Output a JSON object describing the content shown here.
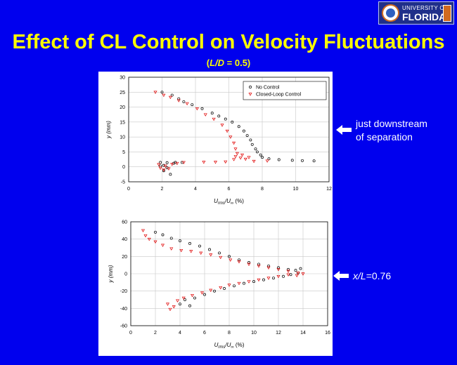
{
  "logo": {
    "line1": "UNIVERSITY OF",
    "line2": "FLORIDA"
  },
  "slide": {
    "title": "Effect of CL Control on Velocity Fluctuations",
    "subtitle_open": "(",
    "subtitle_var": "L/D",
    "subtitle_rest": " = 0.5)"
  },
  "annotations": {
    "top_line1": "just downstream",
    "top_line2": "of separation",
    "bottom_var": "x/L",
    "bottom_rest": "=0.76"
  },
  "colors": {
    "background": "#0000ee",
    "title": "#ffff00",
    "no_control": "#000000",
    "closed_loop": "#e00000"
  },
  "chart_data": [
    {
      "type": "scatter",
      "xlabel_main": "U",
      "xlabel_sub": "rms",
      "xlabel_mid": "/U",
      "xlabel_sub2": "∞",
      "xlabel_unit": " (%)",
      "ylabel": "y (mm)",
      "xlim": [
        0,
        12
      ],
      "ylim": [
        -5,
        30
      ],
      "xticks": [
        0,
        2,
        4,
        6,
        8,
        10,
        12
      ],
      "yticks": [
        -5,
        0,
        5,
        10,
        15,
        20,
        25,
        30
      ],
      "grid": true,
      "legend_position": "top-right",
      "series": [
        {
          "name": "No Control",
          "marker": "circle",
          "points": [
            [
              2.0,
              25
            ],
            [
              2.6,
              24
            ],
            [
              3.0,
              22.8
            ],
            [
              3.3,
              21.8
            ],
            [
              3.8,
              20.8
            ],
            [
              4.4,
              19.5
            ],
            [
              5.0,
              18
            ],
            [
              5.4,
              17
            ],
            [
              5.8,
              16
            ],
            [
              6.2,
              15
            ],
            [
              6.6,
              13.5
            ],
            [
              6.9,
              12
            ],
            [
              7.1,
              10.5
            ],
            [
              7.3,
              9
            ],
            [
              7.4,
              7.5
            ],
            [
              7.6,
              6
            ],
            [
              7.7,
              5
            ],
            [
              7.9,
              4
            ],
            [
              8.0,
              3.2
            ],
            [
              8.4,
              2.7
            ],
            [
              9.0,
              2.4
            ],
            [
              9.8,
              2.2
            ],
            [
              10.4,
              2.1
            ],
            [
              11.1,
              2.0
            ],
            [
              1.9,
              1.5
            ],
            [
              2.3,
              1.4
            ],
            [
              2.8,
              1.5
            ],
            [
              3.2,
              1.5
            ],
            [
              2.1,
              0.5
            ],
            [
              2.3,
              -0.3
            ],
            [
              2.1,
              -1.3
            ],
            [
              2.5,
              -2.5
            ],
            [
              1.9,
              0.3
            ],
            [
              2.7,
              1.2
            ]
          ]
        },
        {
          "name": "Closed-Loop Control",
          "marker": "triangle",
          "points": [
            [
              1.6,
              25
            ],
            [
              2.1,
              24
            ],
            [
              2.5,
              23.3
            ],
            [
              3.0,
              22.2
            ],
            [
              3.5,
              21.2
            ],
            [
              4.1,
              19.5
            ],
            [
              4.6,
              17.5
            ],
            [
              5.1,
              16
            ],
            [
              5.6,
              14
            ],
            [
              5.9,
              12
            ],
            [
              6.1,
              10
            ],
            [
              6.3,
              8
            ],
            [
              6.4,
              6
            ],
            [
              6.5,
              4.5
            ],
            [
              6.4,
              3.5
            ],
            [
              6.7,
              3.0
            ],
            [
              6.3,
              2.5
            ],
            [
              7.0,
              2.6
            ],
            [
              6.8,
              4.0
            ],
            [
              7.2,
              3.2
            ],
            [
              1.8,
              0.8
            ],
            [
              2.2,
              0.3
            ],
            [
              1.9,
              -0.4
            ],
            [
              2.4,
              -0.6
            ],
            [
              2.1,
              -1.0
            ],
            [
              2.6,
              0.9
            ],
            [
              2.9,
              1.2
            ],
            [
              3.3,
              1.5
            ],
            [
              4.5,
              1.6
            ],
            [
              5.2,
              1.6
            ],
            [
              5.8,
              1.7
            ],
            [
              7.5,
              1.9
            ],
            [
              8.3,
              2.0
            ]
          ]
        }
      ]
    },
    {
      "type": "scatter",
      "xlabel_main": "U",
      "xlabel_sub": "rms",
      "xlabel_mid": "/U",
      "xlabel_sub2": "∞",
      "xlabel_unit": " (%)",
      "ylabel": "y (mm)",
      "xlim": [
        0,
        16
      ],
      "ylim": [
        -60,
        60
      ],
      "xticks": [
        0,
        2,
        4,
        6,
        8,
        10,
        12,
        14,
        16
      ],
      "yticks": [
        -60,
        -40,
        -20,
        0,
        20,
        40,
        60
      ],
      "grid": true,
      "series": [
        {
          "name": "No Control",
          "marker": "circle",
          "points": [
            [
              2,
              48
            ],
            [
              2.6,
              45
            ],
            [
              3.3,
              41
            ],
            [
              4,
              38
            ],
            [
              4.8,
              35
            ],
            [
              5.6,
              32
            ],
            [
              6.4,
              28
            ],
            [
              7.2,
              24
            ],
            [
              8,
              20
            ],
            [
              8.8,
              16
            ],
            [
              9.6,
              13
            ],
            [
              10.4,
              11
            ],
            [
              11.2,
              9
            ],
            [
              12,
              7
            ],
            [
              12.8,
              5
            ],
            [
              13.4,
              4
            ],
            [
              13.8,
              6
            ],
            [
              4,
              -35
            ],
            [
              4.4,
              -30
            ],
            [
              4.8,
              -37
            ],
            [
              5.2,
              -28
            ],
            [
              6,
              -24
            ],
            [
              6.8,
              -20
            ],
            [
              7.6,
              -17
            ],
            [
              8.4,
              -14
            ],
            [
              9.2,
              -11
            ],
            [
              10,
              -9
            ],
            [
              10.8,
              -7
            ],
            [
              11.6,
              -5
            ],
            [
              12.4,
              -3
            ],
            [
              13,
              -1
            ],
            [
              13.6,
              1
            ]
          ]
        },
        {
          "name": "Closed-Loop Control",
          "marker": "triangle",
          "points": [
            [
              1,
              50
            ],
            [
              1.2,
              44
            ],
            [
              1.5,
              40
            ],
            [
              2,
              37
            ],
            [
              2.6,
              33
            ],
            [
              3.3,
              29
            ],
            [
              4.1,
              27
            ],
            [
              4.9,
              26
            ],
            [
              5.7,
              24
            ],
            [
              6.5,
              22
            ],
            [
              7.3,
              19
            ],
            [
              8.1,
              16
            ],
            [
              8.8,
              14
            ],
            [
              9.6,
              11
            ],
            [
              10.4,
              9
            ],
            [
              11.2,
              7
            ],
            [
              12,
              5
            ],
            [
              12.8,
              3
            ],
            [
              13.6,
              1
            ],
            [
              14,
              0
            ],
            [
              3,
              -35
            ],
            [
              3.2,
              -41
            ],
            [
              3.5,
              -38
            ],
            [
              3.8,
              -31
            ],
            [
              4.3,
              -28
            ],
            [
              5,
              -25
            ],
            [
              5.8,
              -22
            ],
            [
              6.5,
              -19
            ],
            [
              7.3,
              -16
            ],
            [
              8,
              -13
            ],
            [
              8.8,
              -11
            ],
            [
              9.6,
              -9
            ],
            [
              10.4,
              -7
            ],
            [
              11.2,
              -5
            ],
            [
              12,
              -3
            ],
            [
              12.8,
              -1
            ],
            [
              13.5,
              -2
            ]
          ]
        }
      ]
    }
  ]
}
